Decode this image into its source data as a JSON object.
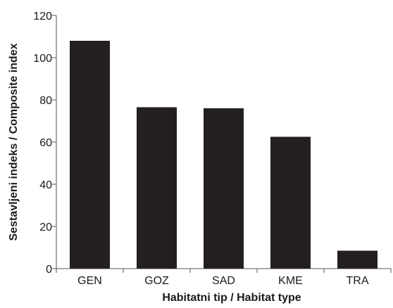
{
  "chart_data": {
    "type": "bar",
    "title": "",
    "categories": [
      "GEN",
      "GOZ",
      "SAD",
      "KME",
      "TRA"
    ],
    "values": [
      108,
      76.5,
      76,
      62.5,
      8.5
    ],
    "xlabel": "Habitatni tip / Habitat type",
    "ylabel": "Sestavljeni indeks / Composite index",
    "ylim": [
      0,
      120
    ],
    "yticks": [
      0,
      20,
      40,
      60,
      80,
      100,
      120
    ],
    "grid": false,
    "legend": "none",
    "colors": {
      "bar": "#231f20",
      "axis": "#555555",
      "text": "#1a1a1a"
    }
  }
}
